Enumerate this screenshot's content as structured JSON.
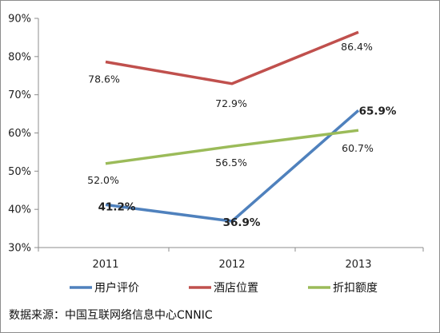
{
  "chart_data": {
    "type": "line",
    "categories": [
      "2011",
      "2012",
      "2013"
    ],
    "ylim": [
      30,
      90
    ],
    "y_ticks": [
      "30%",
      "40%",
      "50%",
      "60%",
      "70%",
      "80%",
      "90%"
    ],
    "grid": false,
    "legend_position": "bottom",
    "series": [
      {
        "name": "用户评价",
        "color": "#4f81bd",
        "values": [
          41.2,
          36.9,
          65.9
        ],
        "labels": [
          "41.2%",
          "36.9%",
          "65.9%"
        ],
        "bold_labels": true
      },
      {
        "name": "酒店位置",
        "color": "#c0504d",
        "values": [
          78.6,
          72.9,
          86.4
        ],
        "labels": [
          "78.6%",
          "72.9%",
          "86.4%"
        ],
        "bold_labels": false
      },
      {
        "name": "折扣额度",
        "color": "#9bbb59",
        "values": [
          52.0,
          56.5,
          60.7
        ],
        "labels": [
          "52.0%",
          "56.5%",
          "60.7%"
        ],
        "bold_labels": false
      }
    ]
  },
  "source_text": "数据来源：中国互联网络信息中心CNNIC"
}
